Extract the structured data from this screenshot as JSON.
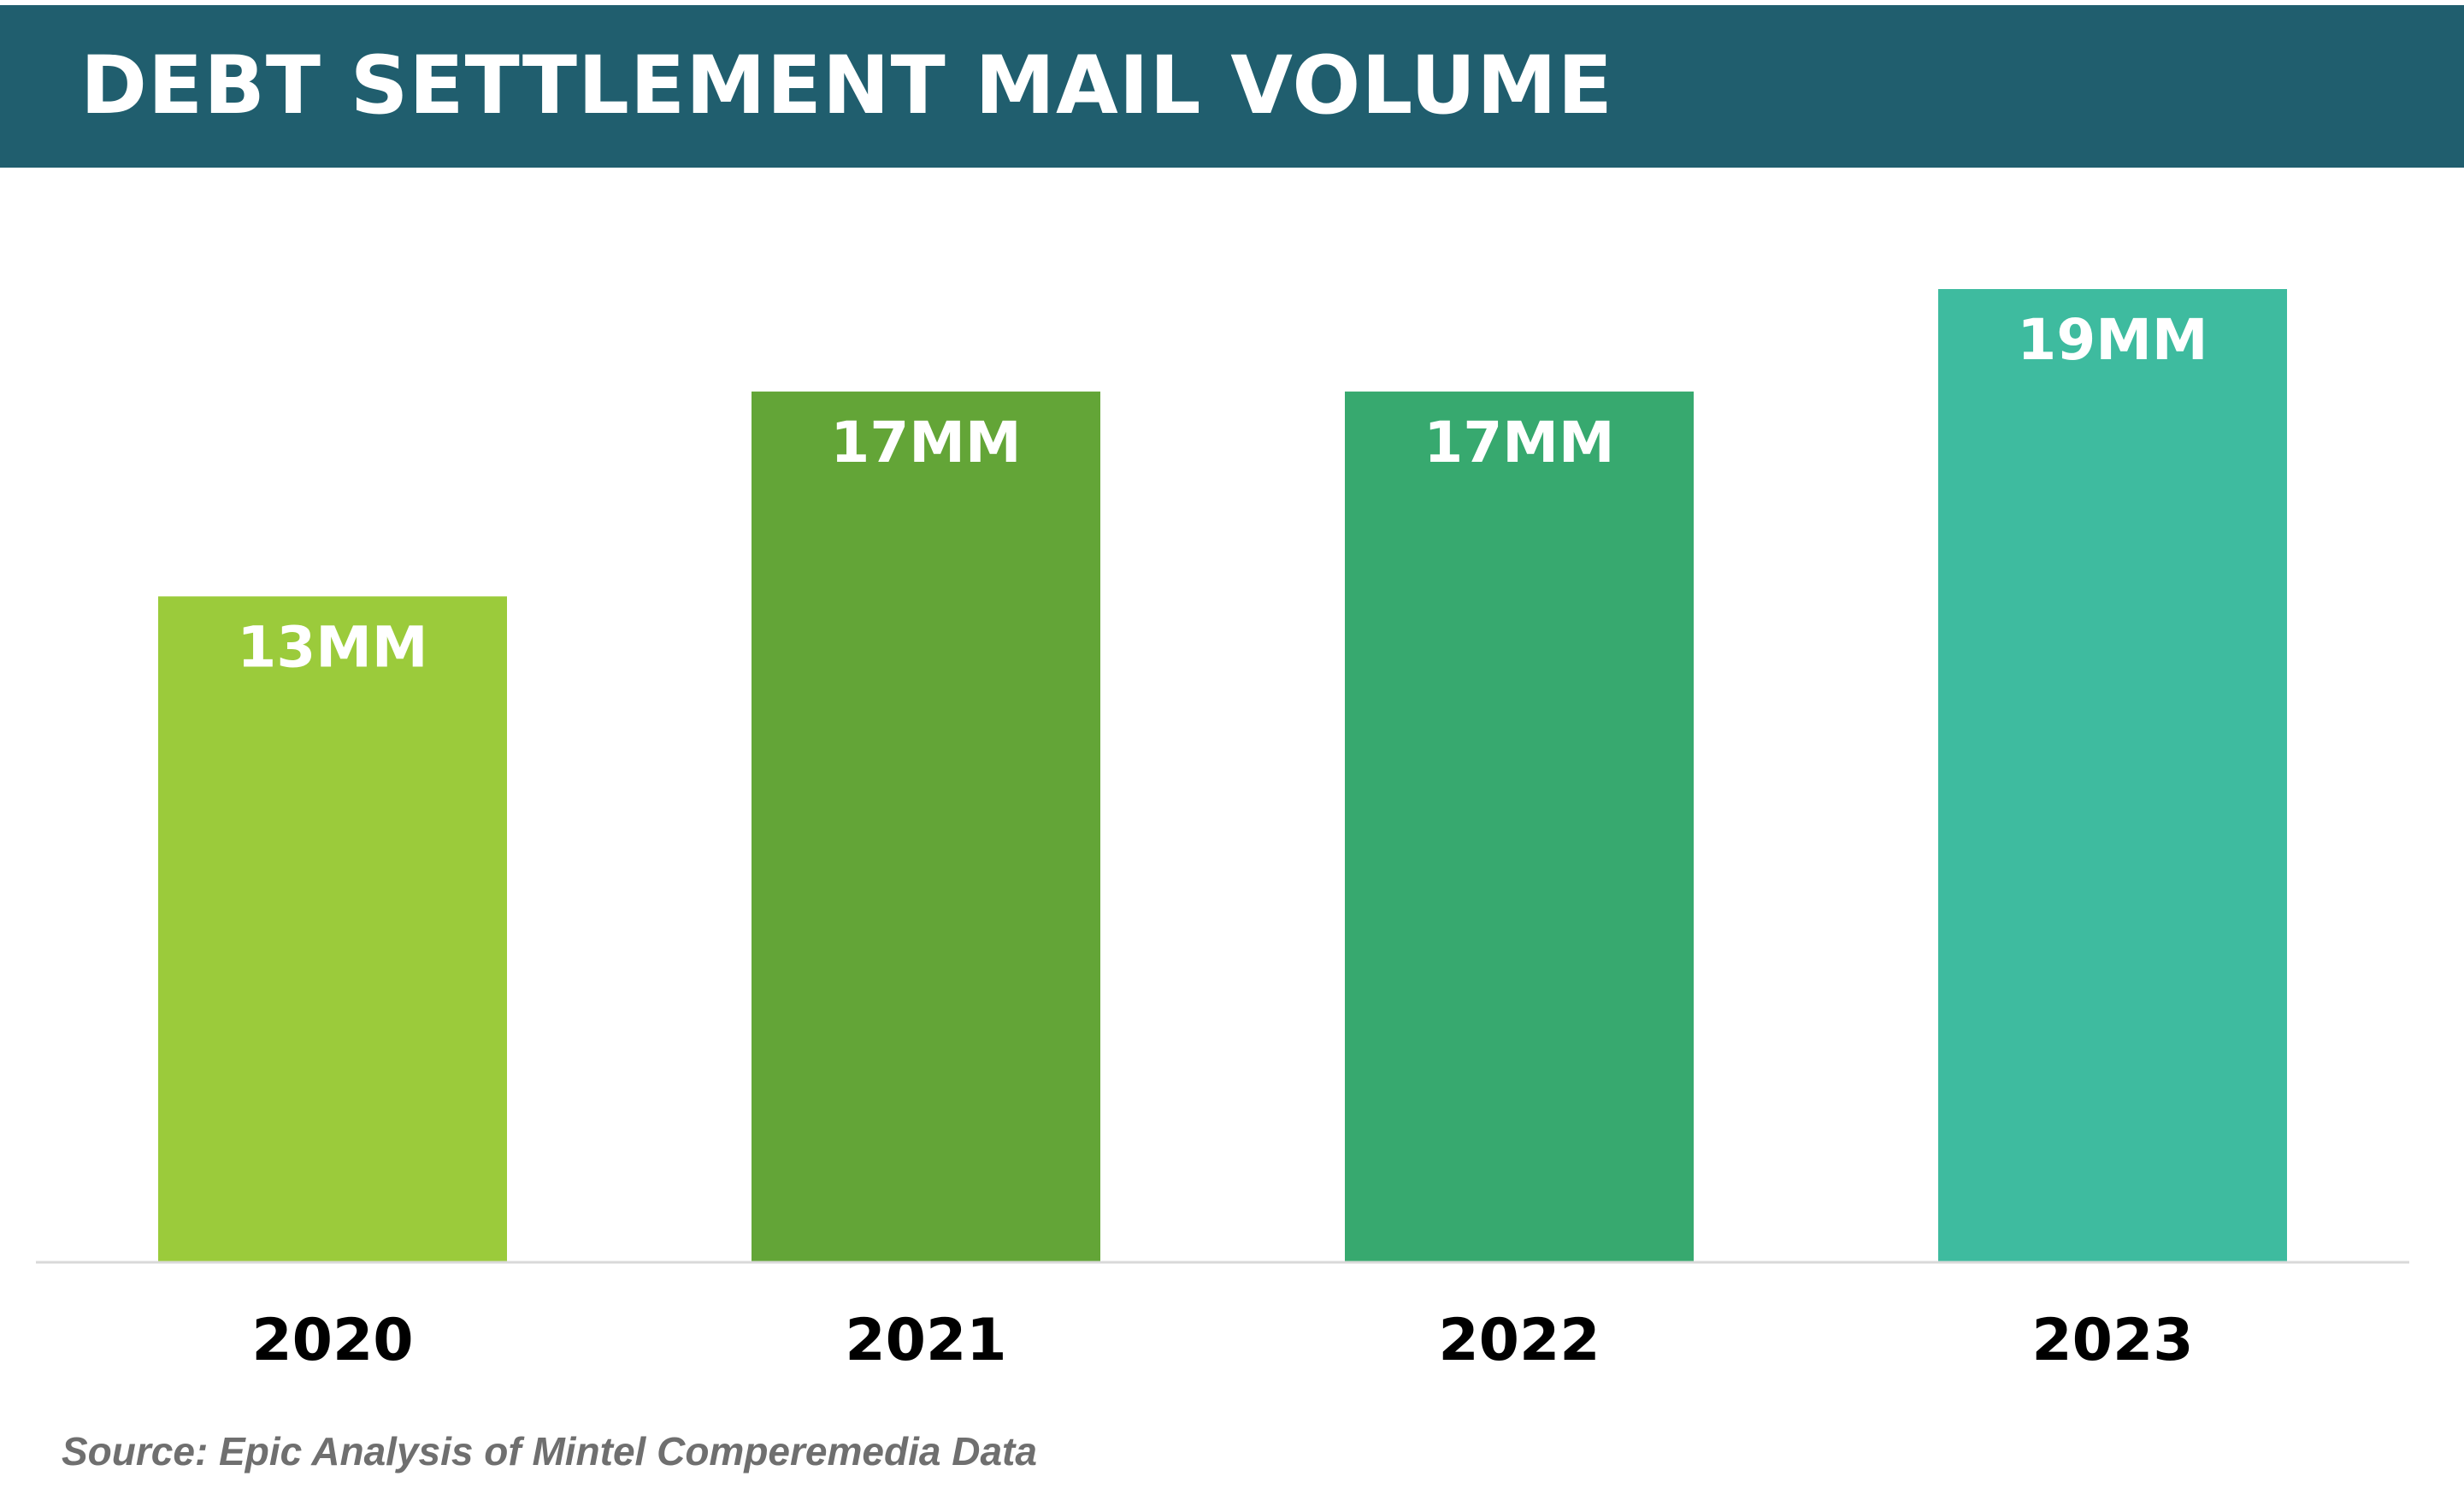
{
  "header": {
    "title": "DEBT SETTLEMENT MAIL VOLUME",
    "background_color": "#205E6E"
  },
  "chart_data": {
    "type": "bar",
    "title": "DEBT SETTLEMENT MAIL VOLUME",
    "categories": [
      "2020",
      "2021",
      "2022",
      "2023"
    ],
    "values": [
      13,
      17,
      17,
      19
    ],
    "unit": "MM",
    "data_labels": [
      "13MM",
      "17MM",
      "17MM",
      "19MM"
    ],
    "bar_colors": [
      "#9BCB3B",
      "#63A537",
      "#37A96F",
      "#3EBB9F"
    ],
    "xlabel": "",
    "ylabel": "",
    "ylim": [
      0,
      19
    ],
    "grid": false,
    "legend": "none"
  },
  "source": "Source: Epic Analysis of Mintel Comperemedia Data"
}
